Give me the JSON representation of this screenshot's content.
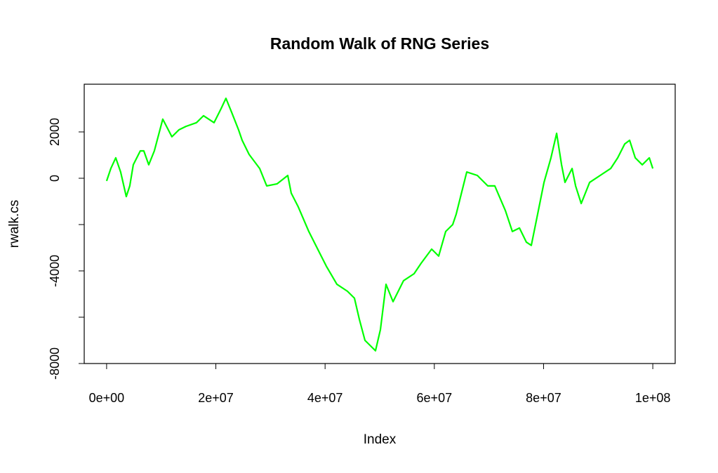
{
  "chart_data": {
    "type": "line",
    "title": "Random Walk of RNG Series",
    "x_label": "Index",
    "y_label": "rwalk.cs",
    "x": [
      0,
      770000,
      1670000,
      2570000,
      3600000,
      4240000,
      4880000,
      6170000,
      6810000,
      7710000,
      8740000,
      10280000,
      11950000,
      13240000,
      14520000,
      16450000,
      17740000,
      19670000,
      20950000,
      21850000,
      22880000,
      24160000,
      24810000,
      26090000,
      28020000,
      29310000,
      31230000,
      33160000,
      33800000,
      35090000,
      37020000,
      38950000,
      40230000,
      42160000,
      44090000,
      45370000,
      46270000,
      47300000,
      48590000,
      49230000,
      50130000,
      51160000,
      52440000,
      54370000,
      56300000,
      57580000,
      59510000,
      60800000,
      62080000,
      63370000,
      64010000,
      65940000,
      67870000,
      69790000,
      71080000,
      73010000,
      74290000,
      75580000,
      76860000,
      77760000,
      78790000,
      80080000,
      81360000,
      82390000,
      83290000,
      83930000,
      85220000,
      85860000,
      86890000,
      88430000,
      90360000,
      92290000,
      93570000,
      94860000,
      95760000,
      96790000,
      98070000,
      99360000,
      100000000
    ],
    "series": [
      {
        "name": "rwalk.cs",
        "color": "#00ff00",
        "values": [
          -120,
          420,
          880,
          270,
          -790,
          -330,
          580,
          1180,
          1180,
          580,
          1180,
          2550,
          1790,
          2090,
          2240,
          2400,
          2700,
          2400,
          3000,
          3450,
          2850,
          2090,
          1640,
          1030,
          420,
          -330,
          -240,
          120,
          -640,
          -1240,
          -2300,
          -3200,
          -3800,
          -4580,
          -4880,
          -5180,
          -6090,
          -7000,
          -7300,
          -7450,
          -6540,
          -4580,
          -5330,
          -4420,
          -4120,
          -3670,
          -3060,
          -3360,
          -2300,
          -2000,
          -1550,
          270,
          120,
          -330,
          -330,
          -1400,
          -2300,
          -2150,
          -2760,
          -2900,
          -1700,
          -180,
          880,
          1940,
          580,
          -180,
          420,
          -330,
          -1090,
          -180,
          120,
          420,
          880,
          1480,
          1640,
          880,
          580,
          880,
          420
        ]
      }
    ],
    "xlim": [
      -4100000,
      104100000
    ],
    "xticks": [
      {
        "value": 0,
        "label": "0e+00"
      },
      {
        "value": 20000000,
        "label": "2e+07"
      },
      {
        "value": 40000000,
        "label": "4e+07"
      },
      {
        "value": 60000000,
        "label": "6e+07"
      },
      {
        "value": 80000000,
        "label": "8e+07"
      },
      {
        "value": 100000000,
        "label": "1e+08"
      }
    ],
    "ylim": [
      -8000,
      4060
    ],
    "yticks": [
      -8000,
      {
        "value": -6000,
        "label": null
      },
      -4000,
      {
        "value": -2000,
        "label": null
      },
      0,
      2000
    ]
  }
}
